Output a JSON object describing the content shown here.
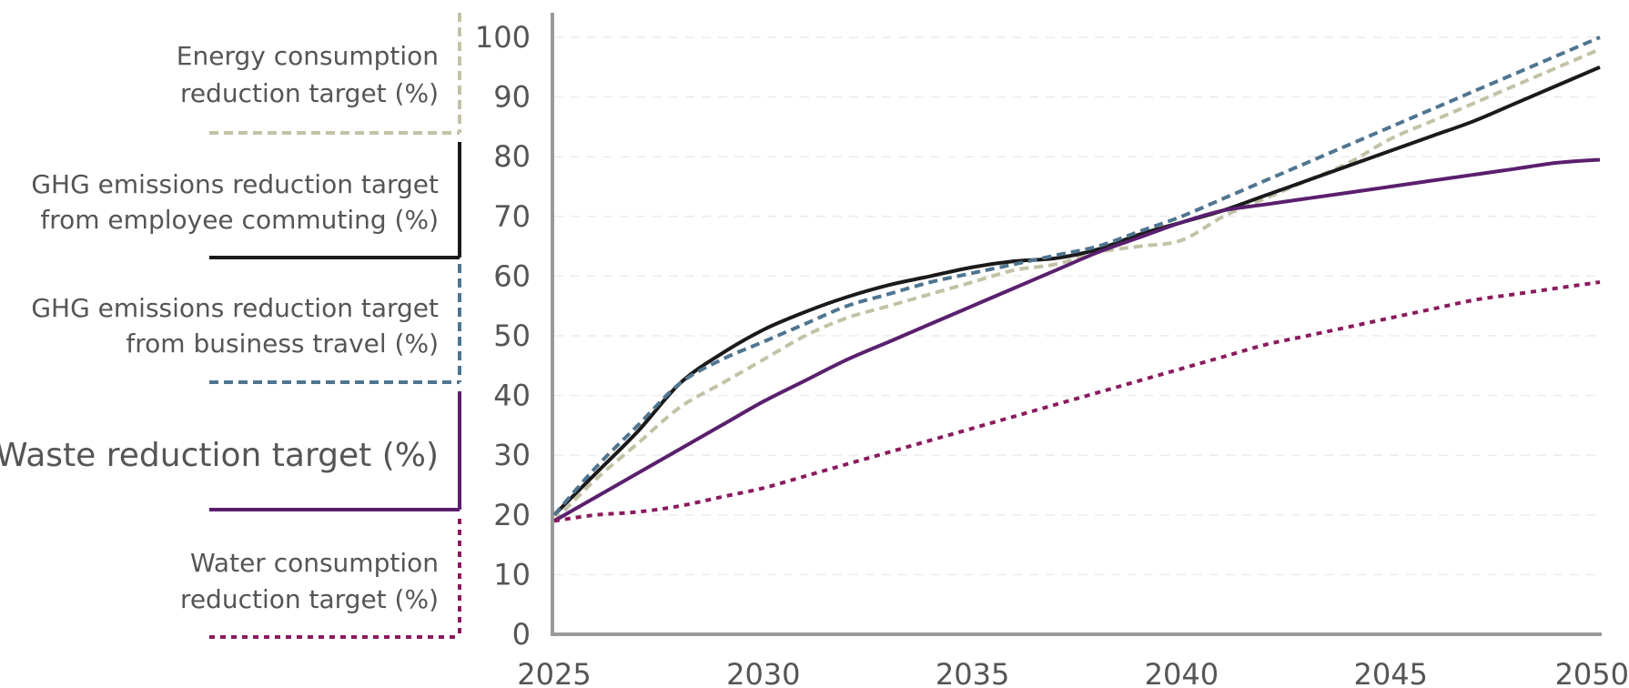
{
  "chart_data": {
    "type": "line",
    "title": "",
    "xlabel": "",
    "ylabel": "",
    "xlim": [
      2025,
      2050
    ],
    "ylim": [
      0,
      100
    ],
    "x_ticks": [
      "2025",
      "2030",
      "2035",
      "2040",
      "2045",
      "2050"
    ],
    "y_ticks": [
      "0",
      "10",
      "20",
      "30",
      "40",
      "50",
      "60",
      "70",
      "80",
      "90",
      "100"
    ],
    "grid": "horizontal dashed",
    "legend_position": "left",
    "series": [
      {
        "name_lines": [
          "Energy consumption",
          "reduction target (%)"
        ],
        "color": "#c4c2a6",
        "style": "dashed",
        "x": [
          2025,
          2026,
          2027,
          2028,
          2029,
          2030,
          2031,
          2032,
          2033,
          2034,
          2035,
          2036,
          2037,
          2038,
          2039,
          2040,
          2041,
          2042,
          2043,
          2044,
          2045,
          2046,
          2047,
          2048,
          2049,
          2050
        ],
        "y": [
          19,
          26,
          32,
          38,
          42,
          46,
          50,
          53,
          55,
          57,
          59,
          61,
          62,
          64,
          65,
          66,
          70,
          73,
          76,
          79,
          83,
          86,
          89,
          92,
          95,
          98
        ]
      },
      {
        "name_lines": [
          "GHG emissions reduction target",
          "from employee commuting (%)"
        ],
        "color": "#1a1a1a",
        "style": "solid",
        "x": [
          2025,
          2026,
          2027,
          2028,
          2029,
          2030,
          2031,
          2032,
          2033,
          2034,
          2035,
          2036,
          2037,
          2038,
          2039,
          2040,
          2041,
          2042,
          2043,
          2044,
          2045,
          2046,
          2047,
          2048,
          2049,
          2050
        ],
        "y": [
          20,
          27,
          34,
          42,
          47,
          51,
          54,
          56.5,
          58.5,
          60,
          61.5,
          62.5,
          63,
          64.5,
          67,
          69,
          71,
          73.5,
          76,
          78.5,
          81,
          83.5,
          86,
          89,
          92,
          95
        ]
      },
      {
        "name_lines": [
          "GHG emissions reduction target",
          "from business travel (%)"
        ],
        "color": "#4f7590",
        "style": "dashed",
        "x": [
          2025,
          2026,
          2027,
          2028,
          2029,
          2030,
          2031,
          2032,
          2033,
          2034,
          2035,
          2036,
          2037,
          2038,
          2039,
          2040,
          2041,
          2042,
          2043,
          2044,
          2045,
          2046,
          2047,
          2048,
          2049,
          2050
        ],
        "y": [
          20,
          28,
          35,
          42,
          46,
          49,
          52,
          55,
          57,
          59,
          60.5,
          62,
          63.5,
          65,
          67.5,
          70,
          73,
          76,
          79,
          82,
          85,
          88,
          91,
          94,
          97,
          100
        ]
      },
      {
        "name_lines": [
          "Waste reduction target (%)"
        ],
        "color": "#5a1f6e",
        "style": "solid",
        "x": [
          2025,
          2026,
          2027,
          2028,
          2029,
          2030,
          2031,
          2032,
          2033,
          2034,
          2035,
          2036,
          2037,
          2038,
          2039,
          2040,
          2041,
          2042,
          2043,
          2044,
          2045,
          2046,
          2047,
          2048,
          2049,
          2050
        ],
        "y": [
          19,
          23,
          27,
          31,
          35,
          39,
          42.5,
          46,
          49,
          52,
          55,
          58,
          61,
          64,
          66.5,
          69,
          71,
          72,
          73,
          74,
          75,
          76,
          77,
          78,
          79,
          79.5
        ]
      },
      {
        "name_lines": [
          "Water consumption",
          "reduction target (%)"
        ],
        "color": "#8a1a5e",
        "style": "dotted",
        "x": [
          2025,
          2026,
          2027,
          2028,
          2029,
          2030,
          2031,
          2032,
          2033,
          2034,
          2035,
          2036,
          2037,
          2038,
          2039,
          2040,
          2041,
          2042,
          2043,
          2044,
          2045,
          2046,
          2047,
          2048,
          2049,
          2050
        ],
        "y": [
          19,
          20,
          20.5,
          21.5,
          23,
          24.5,
          26.5,
          28.5,
          30.5,
          32.5,
          34.5,
          36.5,
          38.5,
          40.5,
          42.5,
          44.5,
          46.5,
          48.5,
          50,
          51.5,
          53,
          54.5,
          56,
          57,
          58,
          59
        ]
      }
    ]
  }
}
